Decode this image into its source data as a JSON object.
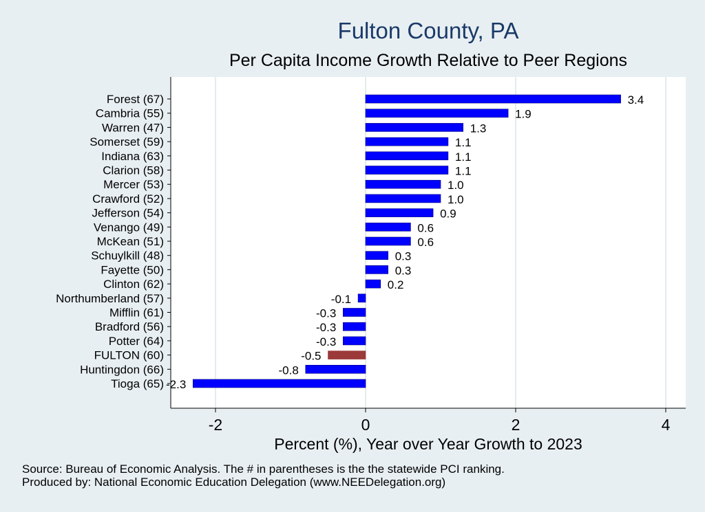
{
  "chart_data": {
    "type": "bar",
    "orientation": "horizontal",
    "title": "Fulton County, PA",
    "subtitle": "Per Capita Income Growth Relative to Peer Regions",
    "xlabel": "Percent (%), Year over Year Growth to 2023",
    "ylabel": "",
    "xlim": [
      -2.5,
      4.2
    ],
    "xticks": [
      -2,
      0,
      2,
      4
    ],
    "grid": true,
    "categories": [
      "Forest (67)",
      "Cambria (55)",
      "Warren (47)",
      "Somerset (59)",
      "Indiana (63)",
      "Clarion (58)",
      "Mercer (53)",
      "Crawford (52)",
      "Jefferson (54)",
      "Venango (49)",
      "McKean (51)",
      "Schuylkill (48)",
      "Fayette (50)",
      "Clinton (62)",
      "Northumberland (57)",
      "Mifflin (61)",
      "Bradford (56)",
      "Potter (64)",
      "FULTON (60)",
      "Huntingdon (66)",
      "Tioga (65)"
    ],
    "values": [
      3.4,
      1.9,
      1.3,
      1.1,
      1.1,
      1.1,
      1.0,
      1.0,
      0.9,
      0.6,
      0.6,
      0.3,
      0.3,
      0.2,
      -0.1,
      -0.3,
      -0.3,
      -0.3,
      -0.5,
      -0.8,
      -2.3
    ],
    "value_labels": [
      "3.4",
      "1.9",
      "1.3",
      "1.1",
      "1.1",
      "1.1",
      "1.0",
      "1.0",
      "0.9",
      "0.6",
      "0.6",
      "0.3",
      "0.3",
      "0.2",
      "-0.1",
      "-0.3",
      "-0.3",
      "-0.3",
      "-0.5",
      "-0.8",
      "-2.3"
    ],
    "highlight_index": 18,
    "colors": {
      "bar": "#0000ff",
      "highlight": "#9c3a3a",
      "bar_edge": "#000080",
      "grid": "#e3ebee"
    }
  },
  "notes": {
    "source": "Source: Bureau of Economic Analysis. The # in parentheses is the the statewide PCI ranking.",
    "produced": "Produced by: National Economic Education Delegation (www.NEEDelegation.org)"
  }
}
